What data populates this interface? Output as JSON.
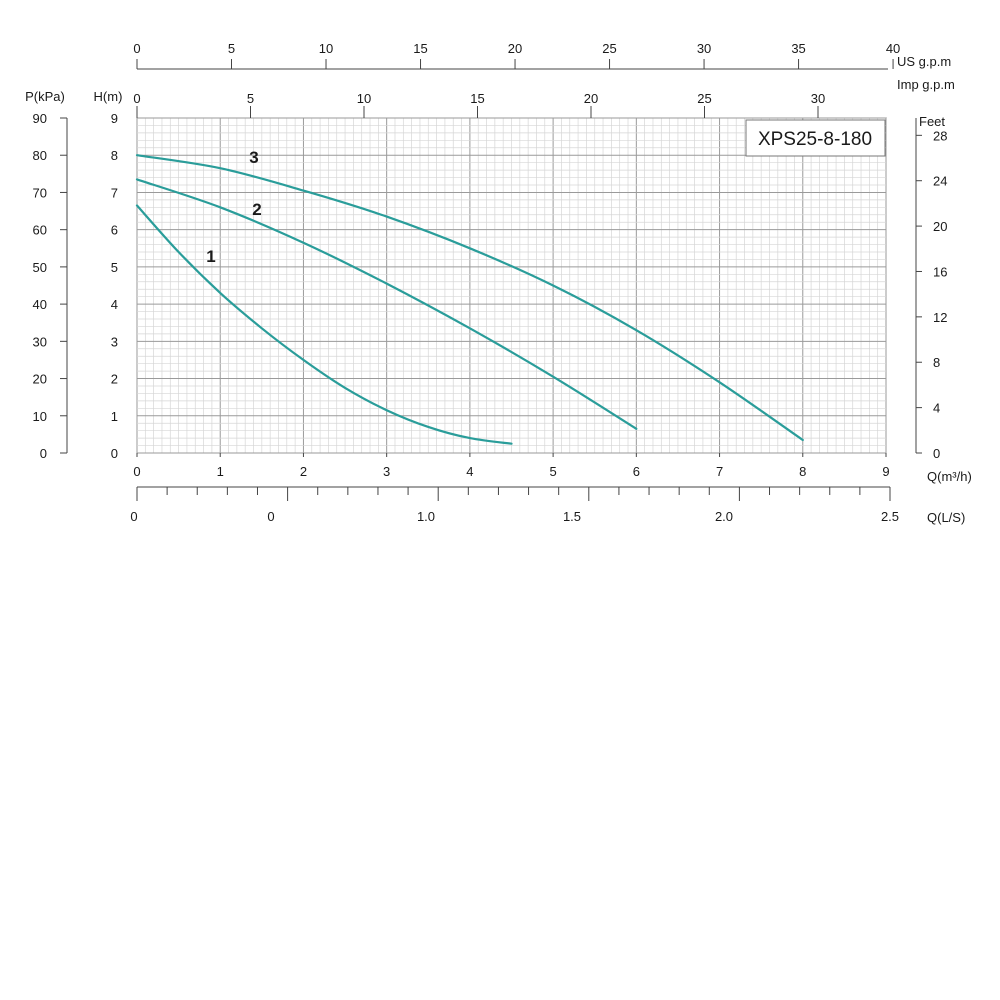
{
  "chart_data": {
    "type": "line",
    "title": "XPS25-8-180",
    "xlabel": "Q(m³/h)",
    "ylabel": "H(m)",
    "xlim": [
      0,
      9
    ],
    "ylim": [
      0,
      9
    ],
    "grid": true,
    "x_ticks": [
      "0",
      "1",
      "2",
      "3",
      "4",
      "5",
      "6",
      "7",
      "8",
      "9"
    ],
    "y_ticks": [
      "0",
      "1",
      "2",
      "3",
      "4",
      "5",
      "6",
      "7",
      "8",
      "9"
    ],
    "secondary_axes": {
      "us_gpm": {
        "label": "US  g.p.m",
        "ticks": [
          "0",
          "5",
          "10",
          "15",
          "20",
          "25",
          "30",
          "35",
          "40"
        ]
      },
      "imp_gpm": {
        "label": "Imp  g.p.m",
        "ticks": [
          "0",
          "5",
          "10",
          "15",
          "20",
          "25",
          "30"
        ]
      },
      "ls": {
        "label": "Q(L/S)",
        "ticks": [
          "0",
          "0",
          "1.0",
          "1.5",
          "2.0",
          "2.5"
        ]
      },
      "kpa": {
        "label": "P(kPa)",
        "ticks": [
          "0",
          "10",
          "20",
          "30",
          "40",
          "50",
          "60",
          "70",
          "80",
          "90"
        ]
      },
      "feet": {
        "label": "Feet",
        "ticks": [
          "0",
          "4",
          "8",
          "12",
          "16",
          "20",
          "24",
          "28"
        ]
      }
    },
    "series": [
      {
        "name": "1",
        "color": "#2a9d9a",
        "x": [
          0,
          0.5,
          1,
          1.5,
          2,
          2.5,
          3,
          3.5,
          4,
          4.5
        ],
        "y": [
          6.65,
          5.4,
          4.3,
          3.35,
          2.5,
          1.75,
          1.15,
          0.7,
          0.4,
          0.25
        ]
      },
      {
        "name": "2",
        "color": "#2a9d9a",
        "x": [
          0,
          1,
          2,
          3,
          4,
          5,
          6
        ],
        "y": [
          7.35,
          6.6,
          5.65,
          4.55,
          3.35,
          2.05,
          0.65
        ]
      },
      {
        "name": "3",
        "color": "#2a9d9a",
        "x": [
          0,
          1,
          2,
          3,
          4,
          5,
          6,
          7,
          8
        ],
        "y": [
          8.0,
          7.65,
          7.05,
          6.35,
          5.5,
          4.5,
          3.3,
          1.9,
          0.35
        ]
      }
    ]
  }
}
